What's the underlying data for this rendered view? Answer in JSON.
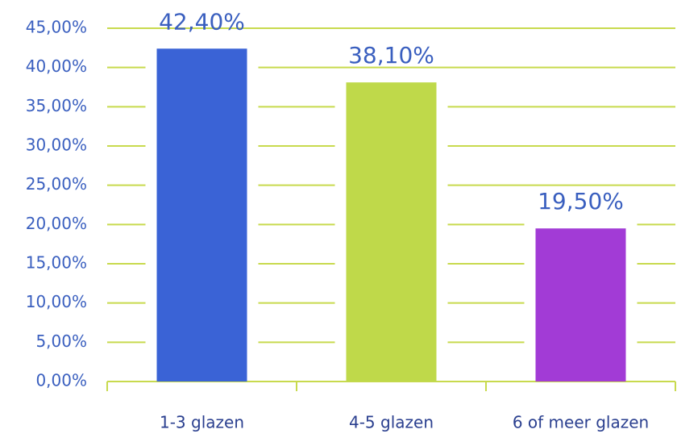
{
  "chart_data": {
    "type": "bar",
    "categories": [
      "1-3 glazen",
      "4-5 glazen",
      "6 of meer glazen"
    ],
    "values": [
      42.4,
      38.1,
      19.5
    ],
    "value_labels": [
      "42,40%",
      "38,10%",
      "19,50%"
    ],
    "colors": [
      "#3a63d6",
      "#bfd94a",
      "#a23bd6"
    ],
    "ylim": [
      0,
      45
    ],
    "yticks": [
      {
        "value": 0,
        "label": "0,00%"
      },
      {
        "value": 5,
        "label": "5,00%"
      },
      {
        "value": 10,
        "label": "10,00%"
      },
      {
        "value": 15,
        "label": "15,00%"
      },
      {
        "value": 20,
        "label": "20,00%"
      },
      {
        "value": 25,
        "label": "25,00%"
      },
      {
        "value": 30,
        "label": "30,00%"
      },
      {
        "value": 35,
        "label": "35,00%"
      },
      {
        "value": 40,
        "label": "40,00%"
      },
      {
        "value": 45,
        "label": "45,00%"
      }
    ],
    "grid": true,
    "grid_color": "#c8da4e"
  }
}
